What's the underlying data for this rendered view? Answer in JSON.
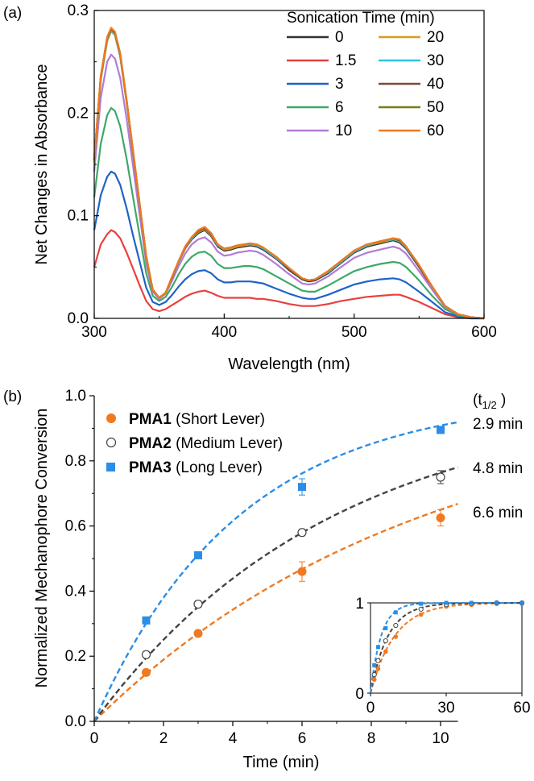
{
  "panels": {
    "a": "(a)",
    "b": "(b)"
  },
  "chart_data": [
    {
      "type": "line",
      "title": "",
      "xlabel": "Wavelength (nm)",
      "ylabel": "Net Changes in Absorbance",
      "xlim": [
        300,
        600
      ],
      "ylim": [
        0,
        0.3
      ],
      "xticks": [
        "300",
        "400",
        "500",
        "600"
      ],
      "yticks": [
        "0.0",
        "0.1",
        "0.2",
        "0.3"
      ],
      "legend_title": "Sonication Time (min)",
      "legend_position": "top-right",
      "x": [
        300,
        305,
        310,
        313,
        316,
        320,
        325,
        330,
        335,
        340,
        345,
        350,
        355,
        360,
        365,
        370,
        375,
        380,
        385,
        390,
        395,
        400,
        405,
        410,
        415,
        420,
        425,
        430,
        440,
        450,
        460,
        465,
        470,
        480,
        490,
        500,
        510,
        520,
        530,
        535,
        540,
        550,
        560,
        570,
        580,
        590,
        600
      ],
      "series": [
        {
          "name": "0",
          "color": "#333333",
          "values": [
            0.155,
            0.235,
            0.272,
            0.28,
            0.276,
            0.255,
            0.21,
            0.16,
            0.11,
            0.06,
            0.028,
            0.02,
            0.025,
            0.04,
            0.055,
            0.068,
            0.077,
            0.083,
            0.086,
            0.08,
            0.07,
            0.066,
            0.067,
            0.069,
            0.07,
            0.071,
            0.07,
            0.067,
            0.058,
            0.047,
            0.038,
            0.036,
            0.037,
            0.044,
            0.054,
            0.064,
            0.07,
            0.073,
            0.076,
            0.074,
            0.068,
            0.05,
            0.03,
            0.012,
            0.004,
            0.001,
            0.0
          ]
        },
        {
          "name": "1.5",
          "color": "#e8403f",
          "values": [
            0.05,
            0.072,
            0.082,
            0.086,
            0.084,
            0.078,
            0.064,
            0.048,
            0.032,
            0.017,
            0.009,
            0.007,
            0.009,
            0.013,
            0.017,
            0.021,
            0.024,
            0.026,
            0.027,
            0.025,
            0.022,
            0.02,
            0.02,
            0.02,
            0.02,
            0.02,
            0.019,
            0.019,
            0.017,
            0.014,
            0.012,
            0.012,
            0.012,
            0.014,
            0.017,
            0.019,
            0.021,
            0.022,
            0.023,
            0.023,
            0.021,
            0.016,
            0.01,
            0.004,
            0.001,
            0.0,
            0.0
          ]
        },
        {
          "name": "3",
          "color": "#1f63c6",
          "values": [
            0.086,
            0.12,
            0.138,
            0.143,
            0.141,
            0.13,
            0.107,
            0.08,
            0.055,
            0.03,
            0.016,
            0.013,
            0.016,
            0.023,
            0.031,
            0.038,
            0.043,
            0.046,
            0.047,
            0.044,
            0.038,
            0.035,
            0.035,
            0.036,
            0.036,
            0.036,
            0.035,
            0.034,
            0.029,
            0.024,
            0.02,
            0.019,
            0.019,
            0.023,
            0.028,
            0.033,
            0.036,
            0.038,
            0.039,
            0.038,
            0.035,
            0.026,
            0.016,
            0.006,
            0.002,
            0.0,
            0.0
          ]
        },
        {
          "name": "6",
          "color": "#3ea868",
          "values": [
            0.118,
            0.17,
            0.198,
            0.205,
            0.202,
            0.187,
            0.155,
            0.117,
            0.08,
            0.044,
            0.022,
            0.017,
            0.021,
            0.031,
            0.043,
            0.053,
            0.06,
            0.064,
            0.065,
            0.061,
            0.053,
            0.049,
            0.049,
            0.05,
            0.051,
            0.051,
            0.05,
            0.048,
            0.041,
            0.034,
            0.027,
            0.026,
            0.026,
            0.032,
            0.039,
            0.046,
            0.05,
            0.053,
            0.055,
            0.054,
            0.05,
            0.037,
            0.022,
            0.009,
            0.003,
            0.001,
            0.0
          ]
        },
        {
          "name": "10",
          "color": "#b37bd6",
          "values": [
            0.143,
            0.215,
            0.25,
            0.257,
            0.253,
            0.234,
            0.194,
            0.147,
            0.1,
            0.054,
            0.026,
            0.019,
            0.024,
            0.037,
            0.051,
            0.063,
            0.072,
            0.077,
            0.079,
            0.074,
            0.065,
            0.061,
            0.062,
            0.064,
            0.065,
            0.066,
            0.065,
            0.062,
            0.053,
            0.043,
            0.034,
            0.033,
            0.034,
            0.041,
            0.05,
            0.059,
            0.064,
            0.067,
            0.07,
            0.068,
            0.063,
            0.046,
            0.028,
            0.011,
            0.004,
            0.001,
            0.0
          ]
        },
        {
          "name": "20",
          "color": "#d4a017",
          "values": [
            0.152,
            0.232,
            0.27,
            0.28,
            0.276,
            0.255,
            0.21,
            0.16,
            0.11,
            0.06,
            0.028,
            0.02,
            0.025,
            0.04,
            0.055,
            0.068,
            0.078,
            0.084,
            0.087,
            0.081,
            0.071,
            0.067,
            0.068,
            0.07,
            0.071,
            0.072,
            0.071,
            0.068,
            0.059,
            0.048,
            0.039,
            0.037,
            0.038,
            0.045,
            0.055,
            0.065,
            0.071,
            0.074,
            0.077,
            0.075,
            0.069,
            0.051,
            0.031,
            0.012,
            0.004,
            0.001,
            0.0
          ]
        },
        {
          "name": "30",
          "color": "#2bc4e0",
          "values": [
            0.154,
            0.234,
            0.272,
            0.281,
            0.277,
            0.256,
            0.211,
            0.161,
            0.11,
            0.06,
            0.028,
            0.02,
            0.025,
            0.04,
            0.055,
            0.069,
            0.078,
            0.085,
            0.088,
            0.082,
            0.071,
            0.068,
            0.069,
            0.071,
            0.072,
            0.072,
            0.071,
            0.068,
            0.059,
            0.048,
            0.039,
            0.037,
            0.038,
            0.045,
            0.055,
            0.065,
            0.071,
            0.075,
            0.077,
            0.076,
            0.069,
            0.051,
            0.031,
            0.012,
            0.004,
            0.001,
            0.0
          ]
        },
        {
          "name": "40",
          "color": "#7a4a3a",
          "values": [
            0.155,
            0.235,
            0.273,
            0.282,
            0.278,
            0.257,
            0.212,
            0.161,
            0.11,
            0.06,
            0.028,
            0.02,
            0.025,
            0.04,
            0.056,
            0.069,
            0.079,
            0.085,
            0.088,
            0.082,
            0.072,
            0.068,
            0.069,
            0.071,
            0.072,
            0.073,
            0.072,
            0.069,
            0.06,
            0.048,
            0.039,
            0.037,
            0.038,
            0.046,
            0.056,
            0.066,
            0.072,
            0.075,
            0.078,
            0.076,
            0.07,
            0.051,
            0.031,
            0.012,
            0.004,
            0.001,
            0.0
          ]
        },
        {
          "name": "50",
          "color": "#7d7a12",
          "values": [
            0.156,
            0.236,
            0.274,
            0.283,
            0.279,
            0.258,
            0.212,
            0.162,
            0.111,
            0.061,
            0.028,
            0.02,
            0.025,
            0.041,
            0.056,
            0.07,
            0.079,
            0.086,
            0.089,
            0.083,
            0.072,
            0.068,
            0.069,
            0.071,
            0.072,
            0.073,
            0.072,
            0.069,
            0.06,
            0.049,
            0.039,
            0.037,
            0.038,
            0.046,
            0.056,
            0.066,
            0.072,
            0.075,
            0.078,
            0.077,
            0.07,
            0.052,
            0.031,
            0.012,
            0.004,
            0.001,
            0.0
          ]
        },
        {
          "name": "60",
          "color": "#ef7a22",
          "values": [
            0.156,
            0.236,
            0.274,
            0.283,
            0.279,
            0.258,
            0.212,
            0.162,
            0.111,
            0.061,
            0.028,
            0.02,
            0.025,
            0.041,
            0.056,
            0.07,
            0.079,
            0.086,
            0.089,
            0.083,
            0.072,
            0.068,
            0.069,
            0.071,
            0.072,
            0.073,
            0.072,
            0.069,
            0.06,
            0.049,
            0.039,
            0.037,
            0.038,
            0.046,
            0.056,
            0.066,
            0.072,
            0.075,
            0.078,
            0.077,
            0.07,
            0.052,
            0.031,
            0.012,
            0.004,
            0.001,
            0.0
          ]
        }
      ]
    },
    {
      "type": "scatter",
      "title": "",
      "xlabel": "Time (min)",
      "ylabel": "Normalized Mechanophore Conversion",
      "xlim": [
        0,
        11
      ],
      "ylim": [
        0,
        1.0
      ],
      "xticks": [
        "0",
        "2",
        "4",
        "6",
        "8",
        "10"
      ],
      "yticks": [
        "0.0",
        "0.2",
        "0.4",
        "0.6",
        "0.8",
        "1.0"
      ],
      "legend_position": "top-left",
      "half_life_header": "(t",
      "half_life_sub": "1/2",
      "half_life_close": " )",
      "series": [
        {
          "name": "PMA1",
          "desc": " (Short Lever)",
          "color": "#ef7a22",
          "marker": "circle-filled",
          "x": [
            1.5,
            3,
            6,
            10
          ],
          "y": [
            0.15,
            0.27,
            0.46,
            0.625
          ],
          "err": [
            0.01,
            0.01,
            0.03,
            0.025
          ],
          "t_half": 6.6,
          "t_half_label": "6.6 min"
        },
        {
          "name": "PMA2",
          "desc": " (Medium Lever)",
          "color": "#444444",
          "marker": "circle-open",
          "x": [
            1.5,
            3,
            6,
            10
          ],
          "y": [
            0.205,
            0.36,
            0.58,
            0.75
          ],
          "err": [
            0.01,
            0.01,
            0.01,
            0.02
          ],
          "t_half": 4.8,
          "t_half_label": "4.8 min"
        },
        {
          "name": "PMA3",
          "desc": " (Long Lever)",
          "color": "#2a8de6",
          "marker": "square-filled",
          "x": [
            1.5,
            3,
            6,
            10
          ],
          "y": [
            0.31,
            0.51,
            0.72,
            0.895
          ],
          "err": [
            0.01,
            0.01,
            0.025,
            0.01
          ],
          "t_half": 2.9,
          "t_half_label": "2.9 min"
        }
      ],
      "fit_xmax": 10.5,
      "inset": {
        "xlim": [
          0,
          60
        ],
        "ylim": [
          0,
          1
        ],
        "xticks": [
          "0",
          "30",
          "60"
        ],
        "yticks": [
          "0",
          "1"
        ],
        "x": [
          1.5,
          3,
          6,
          10,
          20,
          30,
          40,
          50,
          60
        ],
        "series": [
          {
            "name": "PMA1",
            "y": [
              0.15,
              0.27,
              0.46,
              0.625,
              0.87,
              0.96,
              0.98,
              0.99,
              0.99
            ]
          },
          {
            "name": "PMA2",
            "y": [
              0.205,
              0.36,
              0.58,
              0.75,
              0.93,
              0.98,
              0.99,
              1.0,
              1.0
            ]
          },
          {
            "name": "PMA3",
            "y": [
              0.31,
              0.51,
              0.72,
              0.895,
              0.99,
              1.0,
              1.0,
              1.0,
              1.0
            ]
          }
        ]
      }
    }
  ]
}
